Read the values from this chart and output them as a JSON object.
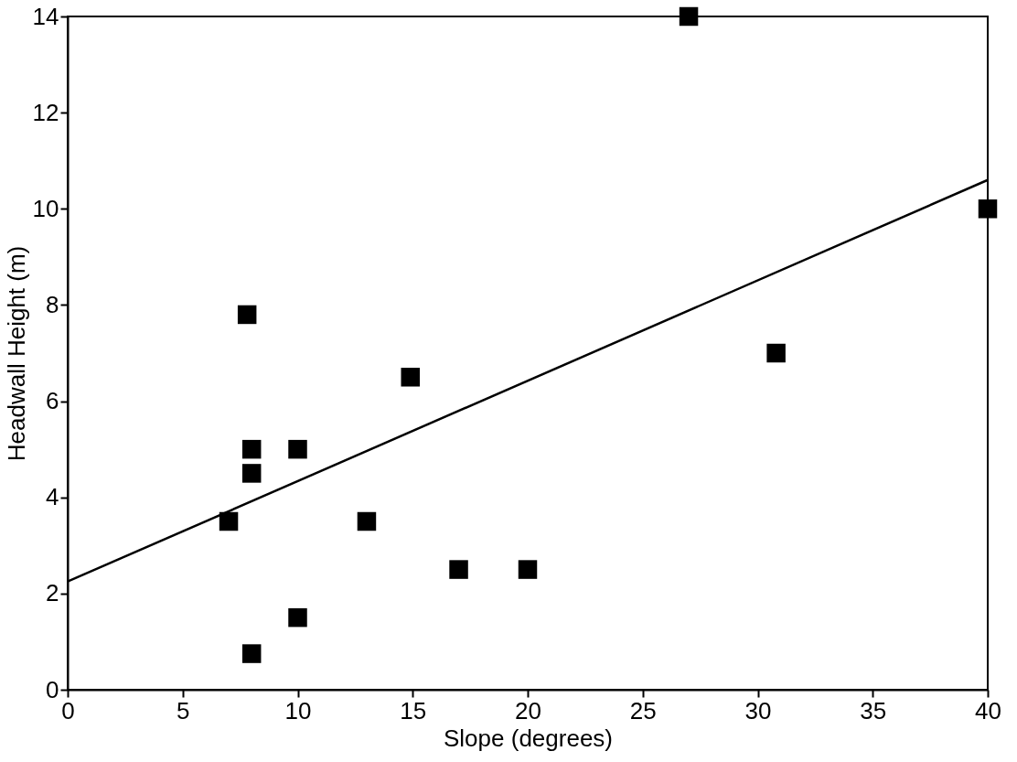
{
  "chart_data": {
    "type": "scatter",
    "xlabel": "Slope (degrees)",
    "ylabel": "Headwall Height (m)",
    "xlim": [
      0,
      40
    ],
    "xticks": [
      0,
      5,
      10,
      15,
      20,
      25,
      30,
      35,
      40
    ],
    "ylim": [
      0,
      14
    ],
    "yticks": [
      0,
      2,
      4,
      6,
      8,
      10,
      12,
      14
    ],
    "grid": false,
    "marker": "square",
    "series": [
      {
        "color": "#000000",
        "x": [
          27,
          40,
          30.8,
          7.8,
          14.9,
          8,
          10,
          8,
          7,
          13,
          17,
          20,
          10,
          8
        ],
        "values": [
          14,
          10,
          7,
          7.8,
          6.5,
          5,
          5,
          4.5,
          3.5,
          3.5,
          2.5,
          2.5,
          1.5,
          0.75
        ]
      },
      {
        "type": "line",
        "color": "#000000",
        "marker": "none",
        "line_style": "solid",
        "x": [
          0,
          40
        ],
        "values": [
          2.25,
          10.6
        ]
      }
    ]
  }
}
